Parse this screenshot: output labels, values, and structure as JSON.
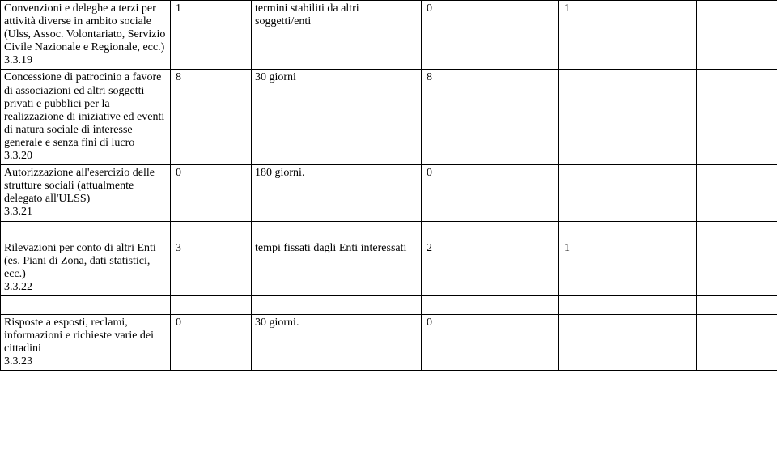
{
  "rows": [
    {
      "desc": "Convenzioni e deleghe a terzi per attività diverse in ambito sociale (Ulss, Assoc. Volontariato, Servizio Civile Nazionale e Regionale, ecc.)",
      "code": "3.3.19",
      "c1": "1",
      "term": "termini stabiliti da altri soggetti/enti",
      "c2": "0",
      "c3": "1"
    },
    {
      "desc": "Concessione di patrocinio a favore di associazioni ed altri soggetti privati e pubblici per la realizzazione di iniziative ed eventi di natura sociale di interesse generale e senza fini di lucro",
      "code": "3.3.20",
      "c1": "8",
      "term": "30 giorni",
      "c2": "8",
      "c3": ""
    },
    {
      "desc": "Autorizzazione all'esercizio delle strutture sociali (attualmente delegato all'ULSS)",
      "code": "3.3.21",
      "c1": "0",
      "term": "180 giorni.",
      "c2": "0",
      "c3": ""
    },
    {
      "desc": "Rilevazioni per conto di altri Enti (es. Piani di Zona, dati statistici, ecc.)",
      "code": "3.3.22",
      "c1": "3",
      "term": "tempi fissati dagli Enti interessati",
      "c2": "2",
      "c3": "1"
    },
    {
      "desc": "Risposte a esposti, reclami, informazioni e richieste varie dei cittadini",
      "code": "3.3.23",
      "c1": "0",
      "term": "30 giorni.",
      "c2": "0",
      "c3": ""
    }
  ]
}
